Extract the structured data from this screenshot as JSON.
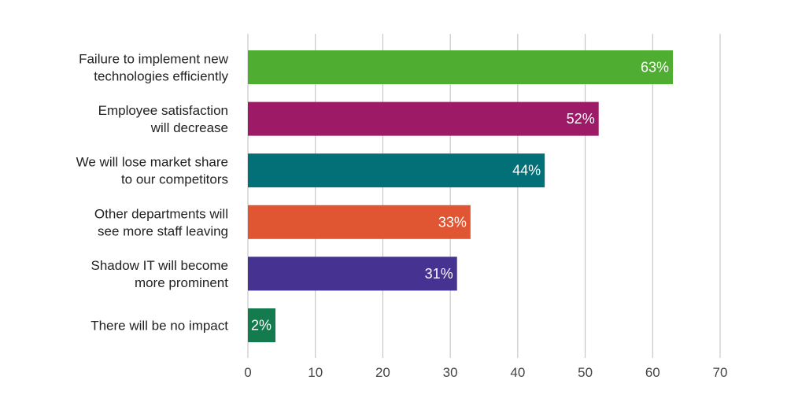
{
  "chart_data": {
    "type": "bar",
    "orientation": "horizontal",
    "categories": [
      [
        "Failure to implement new",
        "technologies efficiently"
      ],
      [
        "Employee satisfaction",
        "will decrease"
      ],
      [
        "We will lose market share",
        "to our competitors"
      ],
      [
        "Other departments will",
        "see more staff leaving"
      ],
      [
        "Shadow IT will become",
        "more prominent"
      ],
      [
        "There will be no impact"
      ]
    ],
    "values": [
      63,
      52,
      44,
      33,
      31,
      2
    ],
    "data_labels": [
      "63%",
      "52%",
      "44%",
      "33%",
      "31%",
      "2%"
    ],
    "colors": [
      "#4fad32",
      "#9c1a66",
      "#027076",
      "#e15632",
      "#453291",
      "#137b4e"
    ],
    "xlim": [
      0,
      70
    ],
    "xticks": [
      0,
      10,
      20,
      30,
      40,
      50,
      60,
      70
    ],
    "grid": true,
    "legend": "none"
  }
}
